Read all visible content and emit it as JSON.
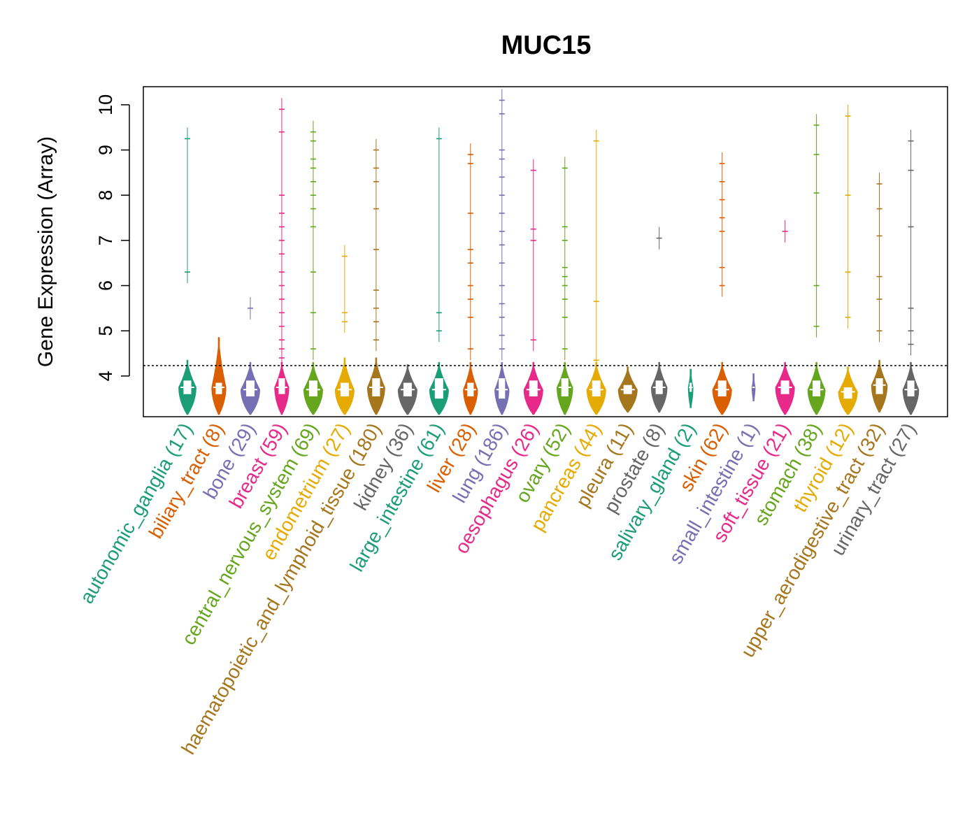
{
  "chart_data": {
    "type": "violin",
    "title": "MUC15",
    "xlabel": "",
    "ylabel": "Gene Expression (Array)",
    "ylim": [
      3.1,
      10.4
    ],
    "yticks": [
      4,
      5,
      6,
      7,
      8,
      9,
      10
    ],
    "reference_line": 4.23,
    "grid": false,
    "categories": [
      {
        "name": "autonomic_ganglia",
        "n": 17,
        "label": "autonomic_ganglia (17)",
        "color": "#1B9E77",
        "median": 3.75,
        "q1": 3.6,
        "q3": 3.9,
        "min": 3.15,
        "max": 4.35,
        "width": 0.55,
        "outliers": [
          6.3,
          9.25
        ]
      },
      {
        "name": "biliary_tract",
        "n": 8,
        "label": "biliary_tract (8)",
        "color": "#D95F02",
        "median": 3.75,
        "q1": 3.6,
        "q3": 3.85,
        "min": 3.15,
        "max": 4.85,
        "width": 0.45,
        "outliers": []
      },
      {
        "name": "bone",
        "n": 29,
        "label": "bone (29)",
        "color": "#7570B3",
        "median": 3.7,
        "q1": 3.55,
        "q3": 3.9,
        "min": 3.15,
        "max": 4.3,
        "width": 0.6,
        "outliers": [
          5.5
        ]
      },
      {
        "name": "breast",
        "n": 59,
        "label": "breast (59)",
        "color": "#E7298A",
        "median": 3.75,
        "q1": 3.6,
        "q3": 3.95,
        "min": 3.15,
        "max": 4.3,
        "width": 0.45,
        "outliers": [
          4.4,
          4.6,
          4.8,
          5.1,
          5.4,
          5.7,
          6.0,
          6.3,
          6.7,
          7.0,
          7.3,
          7.6,
          8.0,
          9.4,
          9.9
        ]
      },
      {
        "name": "central_nervous_system",
        "n": 69,
        "label": "central_nervous_system (69)",
        "color": "#66A61E",
        "median": 3.7,
        "q1": 3.55,
        "q3": 3.9,
        "min": 3.15,
        "max": 4.3,
        "width": 0.6,
        "outliers": [
          4.6,
          5.4,
          6.3,
          7.3,
          7.7,
          8.0,
          8.3,
          8.6,
          8.8,
          9.2,
          9.4
        ]
      },
      {
        "name": "endometrium",
        "n": 27,
        "label": "endometrium (27)",
        "color": "#E6AB02",
        "median": 3.7,
        "q1": 3.55,
        "q3": 3.85,
        "min": 3.15,
        "max": 4.4,
        "width": 0.6,
        "outliers": [
          5.2,
          5.4,
          6.65
        ]
      },
      {
        "name": "haematopoietic_and_lymphoid_tissue",
        "n": 180,
        "label": "haematopoietic_and_lymphoid_tissue (180)",
        "color": "#A6761D",
        "median": 3.75,
        "q1": 3.55,
        "q3": 3.95,
        "min": 3.15,
        "max": 4.4,
        "width": 0.55,
        "outliers": [
          4.8,
          5.2,
          5.5,
          5.9,
          6.8,
          7.7,
          8.3,
          8.6,
          9.0
        ]
      },
      {
        "name": "kidney",
        "n": 36,
        "label": "kidney (36)",
        "color": "#666666",
        "median": 3.7,
        "q1": 3.55,
        "q3": 3.85,
        "min": 3.15,
        "max": 4.25,
        "width": 0.6,
        "outliers": []
      },
      {
        "name": "large_intestine",
        "n": 61,
        "label": "large_intestine (61)",
        "color": "#1B9E77",
        "median": 3.7,
        "q1": 3.5,
        "q3": 3.95,
        "min": 3.15,
        "max": 4.3,
        "width": 0.6,
        "outliers": [
          5.0,
          5.4,
          9.25
        ]
      },
      {
        "name": "liver",
        "n": 28,
        "label": "liver (28)",
        "color": "#D95F02",
        "median": 3.7,
        "q1": 3.55,
        "q3": 3.85,
        "min": 3.15,
        "max": 4.3,
        "width": 0.45,
        "outliers": [
          4.6,
          5.3,
          5.7,
          6.0,
          6.5,
          6.8,
          7.6,
          8.7,
          8.9
        ]
      },
      {
        "name": "lung",
        "n": 186,
        "label": "lung (186)",
        "color": "#7570B3",
        "median": 3.7,
        "q1": 3.5,
        "q3": 3.95,
        "min": 3.15,
        "max": 4.3,
        "width": 0.45,
        "outliers": [
          4.6,
          4.9,
          5.3,
          5.6,
          6.0,
          6.5,
          6.9,
          7.2,
          7.6,
          8.0,
          8.4,
          8.8,
          9.0,
          9.8,
          10.1
        ]
      },
      {
        "name": "oesophagus",
        "n": 26,
        "label": "oesophagus (26)",
        "color": "#E7298A",
        "median": 3.7,
        "q1": 3.55,
        "q3": 3.9,
        "min": 3.15,
        "max": 4.3,
        "width": 0.6,
        "outliers": [
          4.8,
          7.0,
          7.25,
          8.55
        ]
      },
      {
        "name": "ovary",
        "n": 52,
        "label": "ovary (52)",
        "color": "#66A61E",
        "median": 3.75,
        "q1": 3.55,
        "q3": 3.95,
        "min": 3.15,
        "max": 4.3,
        "width": 0.5,
        "outliers": [
          4.6,
          5.3,
          5.7,
          6.0,
          6.2,
          6.4,
          7.0,
          7.3,
          8.6
        ]
      },
      {
        "name": "pancreas",
        "n": 44,
        "label": "pancreas (44)",
        "color": "#E6AB02",
        "median": 3.7,
        "q1": 3.55,
        "q3": 3.9,
        "min": 3.15,
        "max": 4.3,
        "width": 0.6,
        "outliers": [
          4.35,
          5.65,
          9.2
        ]
      },
      {
        "name": "pleura",
        "n": 11,
        "label": "pleura (11)",
        "color": "#A6761D",
        "median": 3.7,
        "q1": 3.6,
        "q3": 3.8,
        "min": 3.2,
        "max": 4.2,
        "width": 0.6,
        "outliers": []
      },
      {
        "name": "prostate",
        "n": 8,
        "label": "prostate (8)",
        "color": "#666666",
        "median": 3.75,
        "q1": 3.6,
        "q3": 3.9,
        "min": 3.2,
        "max": 4.3,
        "width": 0.5,
        "outliers": [
          7.05
        ]
      },
      {
        "name": "salivary_gland",
        "n": 2,
        "label": "salivary_gland (2)",
        "color": "#1B9E77",
        "median": 3.75,
        "q1": 3.65,
        "q3": 3.85,
        "min": 3.3,
        "max": 4.15,
        "width": 0.15,
        "outliers": []
      },
      {
        "name": "skin",
        "n": 62,
        "label": "skin (62)",
        "color": "#D95F02",
        "median": 3.7,
        "q1": 3.55,
        "q3": 3.9,
        "min": 3.15,
        "max": 4.3,
        "width": 0.6,
        "outliers": [
          6.0,
          6.4,
          7.2,
          7.5,
          7.9,
          8.3,
          8.7
        ]
      },
      {
        "name": "small_intestine",
        "n": 1,
        "label": "small_intestine (1)",
        "color": "#7570B3",
        "median": 3.75,
        "q1": 3.75,
        "q3": 3.75,
        "min": 3.45,
        "max": 4.05,
        "width": 0.1,
        "outliers": []
      },
      {
        "name": "soft_tissue",
        "n": 21,
        "label": "soft_tissue (21)",
        "color": "#E7298A",
        "median": 3.75,
        "q1": 3.6,
        "q3": 3.9,
        "min": 3.15,
        "max": 4.3,
        "width": 0.6,
        "outliers": [
          7.2
        ]
      },
      {
        "name": "stomach",
        "n": 38,
        "label": "stomach (38)",
        "color": "#66A61E",
        "median": 3.7,
        "q1": 3.55,
        "q3": 3.9,
        "min": 3.15,
        "max": 4.3,
        "width": 0.55,
        "outliers": [
          5.1,
          6.0,
          8.05,
          8.9,
          9.55
        ]
      },
      {
        "name": "thyroid",
        "n": 12,
        "label": "thyroid (12)",
        "color": "#E6AB02",
        "median": 3.65,
        "q1": 3.5,
        "q3": 3.75,
        "min": 3.15,
        "max": 4.2,
        "width": 0.6,
        "outliers": [
          5.3,
          6.3,
          8.0,
          9.75
        ]
      },
      {
        "name": "upper_aerodigestive_tract",
        "n": 32,
        "label": "upper_aerodigestive_tract (32)",
        "color": "#A6761D",
        "median": 3.8,
        "q1": 3.6,
        "q3": 3.95,
        "min": 3.2,
        "max": 4.35,
        "width": 0.5,
        "outliers": [
          5.0,
          5.7,
          6.2,
          7.1,
          7.7,
          8.25
        ]
      },
      {
        "name": "urinary_tract",
        "n": 27,
        "label": "urinary_tract (27)",
        "color": "#666666",
        "median": 3.7,
        "q1": 3.55,
        "q3": 3.9,
        "min": 3.15,
        "max": 4.3,
        "width": 0.5,
        "outliers": [
          4.7,
          5.0,
          5.5,
          7.3,
          8.55,
          9.2
        ]
      }
    ]
  }
}
